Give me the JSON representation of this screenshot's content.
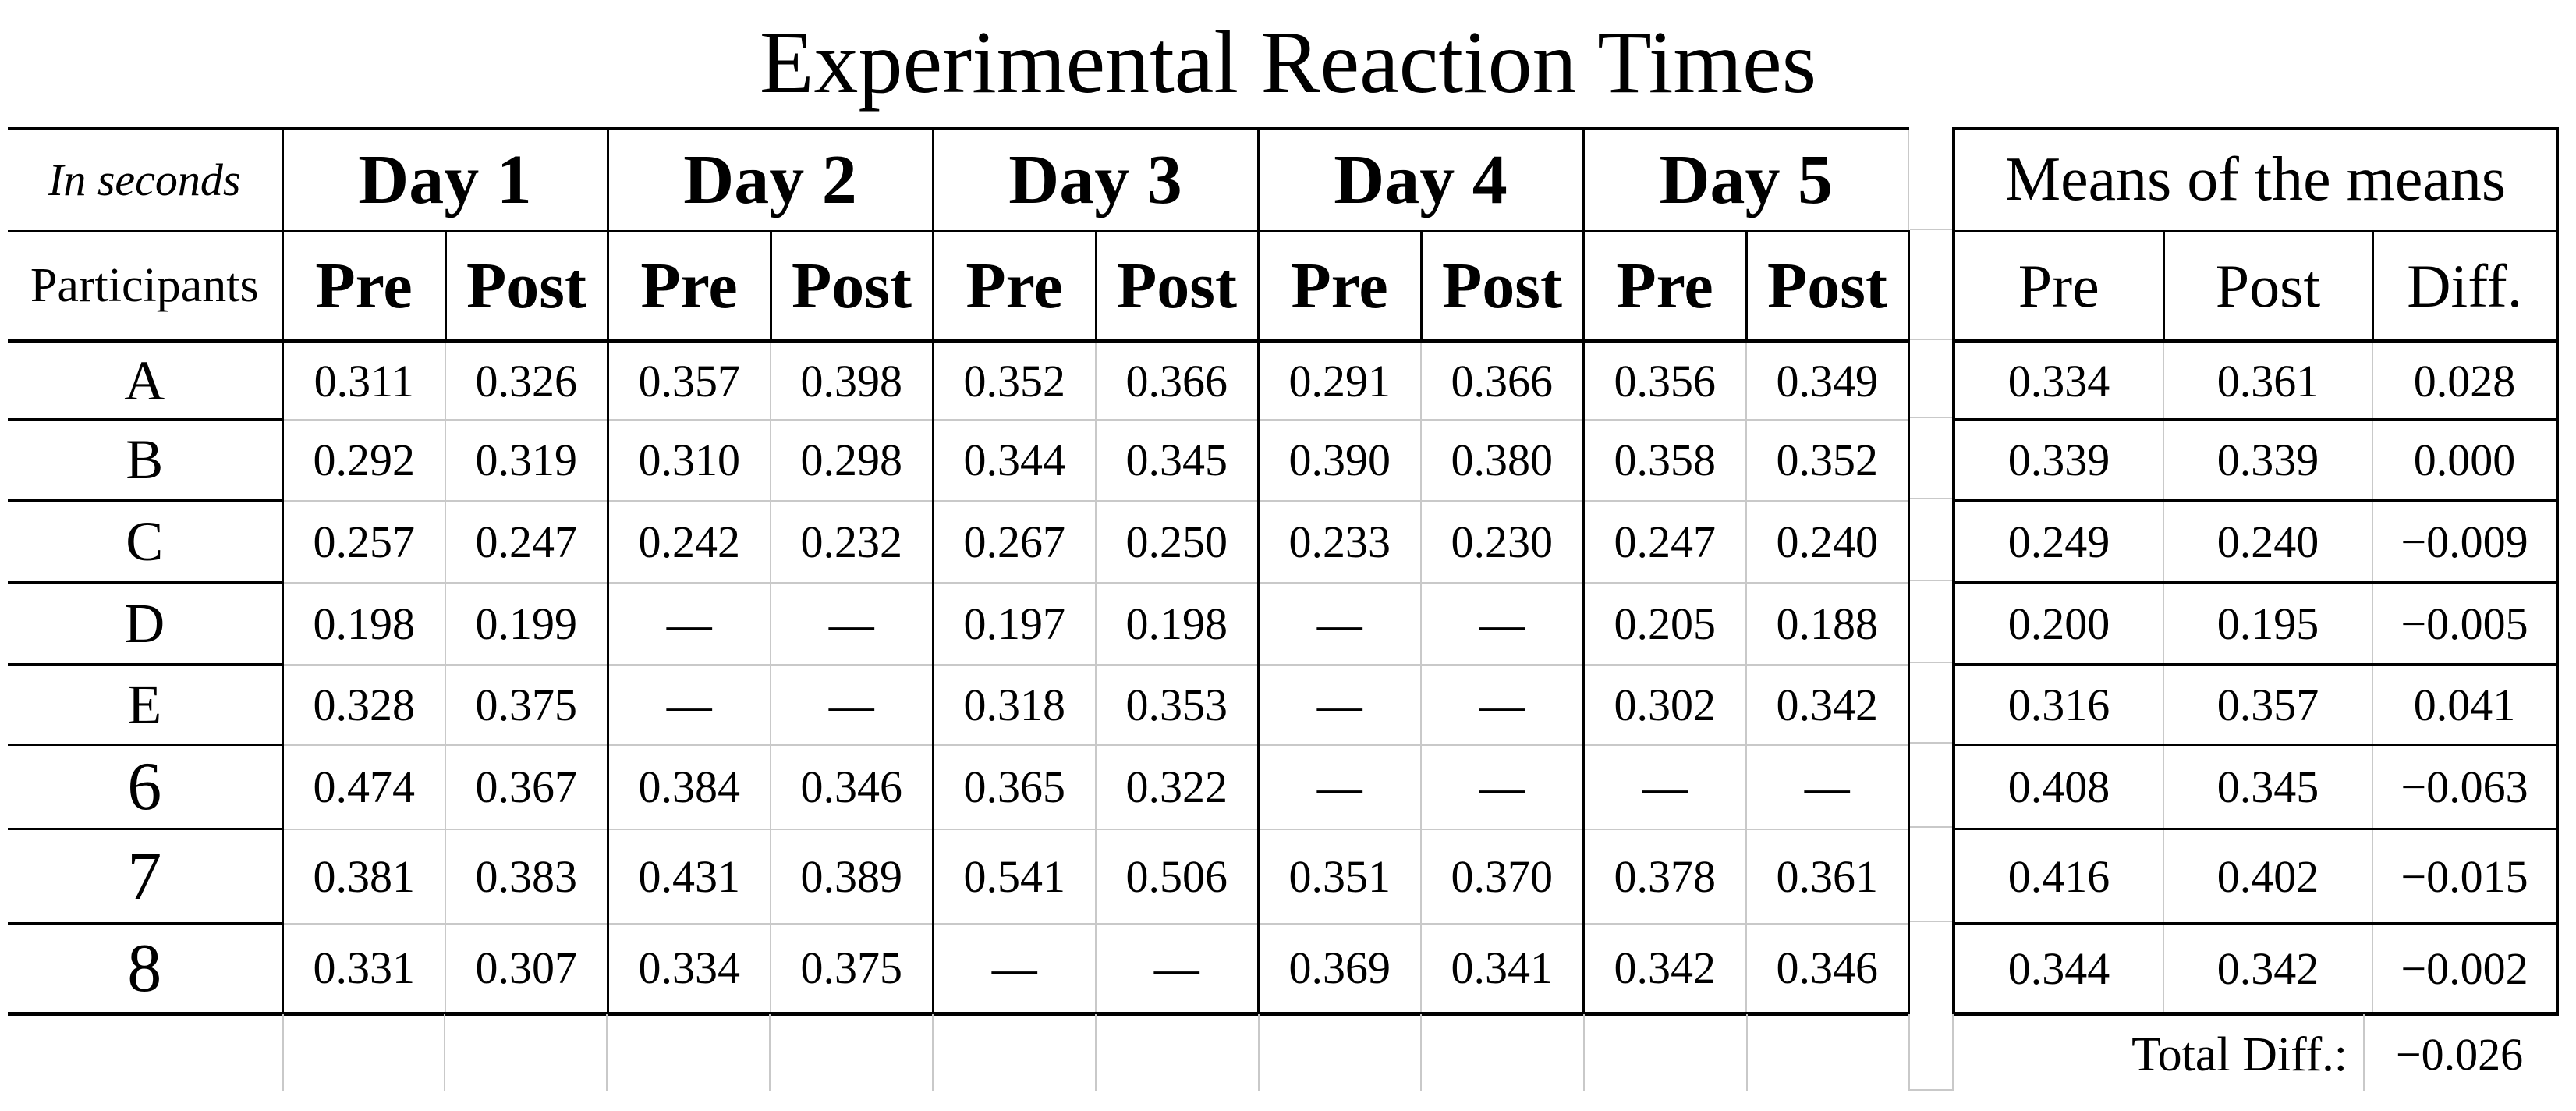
{
  "title": "Experimental Reaction Times",
  "colors": {
    "background": "#ffffff",
    "text": "#000000",
    "table_border": "#000000",
    "grid_line": "#c9c9c9"
  },
  "main_table": {
    "unit_label": "In seconds",
    "row_header": "Participants",
    "day_headers": [
      "Day 1",
      "Day 2",
      "Day 3",
      "Day 4",
      "Day 5"
    ],
    "sub_headers": [
      "Pre",
      "Post"
    ],
    "rows": [
      {
        "participant": "A",
        "values": [
          "0.311",
          "0.326",
          "0.357",
          "0.398",
          "0.352",
          "0.366",
          "0.291",
          "0.366",
          "0.356",
          "0.349"
        ]
      },
      {
        "participant": "B",
        "values": [
          "0.292",
          "0.319",
          "0.310",
          "0.298",
          "0.344",
          "0.345",
          "0.390",
          "0.380",
          "0.358",
          "0.352"
        ]
      },
      {
        "participant": "C",
        "values": [
          "0.257",
          "0.247",
          "0.242",
          "0.232",
          "0.267",
          "0.250",
          "0.233",
          "0.230",
          "0.247",
          "0.240"
        ]
      },
      {
        "participant": "D",
        "values": [
          "0.198",
          "0.199",
          "—",
          "—",
          "0.197",
          "0.198",
          "—",
          "—",
          "0.205",
          "0.188"
        ]
      },
      {
        "participant": "E",
        "values": [
          "0.328",
          "0.375",
          "—",
          "—",
          "0.318",
          "0.353",
          "—",
          "—",
          "0.302",
          "0.342"
        ]
      },
      {
        "participant": "6",
        "values": [
          "0.474",
          "0.367",
          "0.384",
          "0.346",
          "0.365",
          "0.322",
          "—",
          "—",
          "—",
          "—"
        ]
      },
      {
        "participant": "7",
        "values": [
          "0.381",
          "0.383",
          "0.431",
          "0.389",
          "0.541",
          "0.506",
          "0.351",
          "0.370",
          "0.378",
          "0.361"
        ]
      },
      {
        "participant": "8",
        "values": [
          "0.331",
          "0.307",
          "0.334",
          "0.375",
          "—",
          "—",
          "0.369",
          "0.341",
          "0.342",
          "0.346"
        ]
      }
    ]
  },
  "means_table": {
    "title": "Means of the means",
    "col_headers": [
      "Pre",
      "Post",
      "Diff."
    ],
    "rows": [
      [
        "0.334",
        "0.361",
        "0.028"
      ],
      [
        "0.339",
        "0.339",
        "0.000"
      ],
      [
        "0.249",
        "0.240",
        "−0.009"
      ],
      [
        "0.200",
        "0.195",
        "−0.005"
      ],
      [
        "0.316",
        "0.357",
        "0.041"
      ],
      [
        "0.408",
        "0.345",
        "−0.063"
      ],
      [
        "0.416",
        "0.402",
        "−0.015"
      ],
      [
        "0.344",
        "0.342",
        "−0.002"
      ]
    ]
  },
  "footer": {
    "total_label": "Total Diff.:",
    "total_value": "−0.026"
  }
}
